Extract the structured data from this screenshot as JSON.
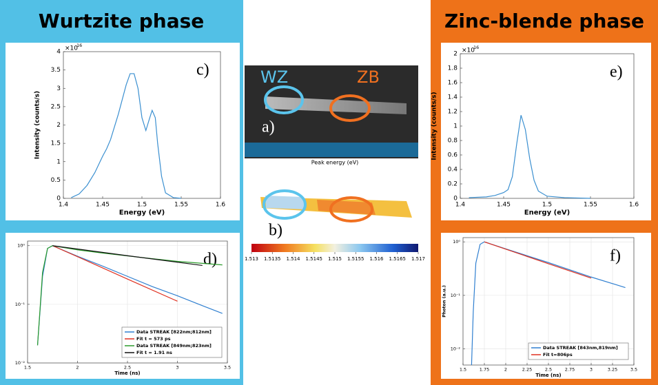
{
  "wurtzite_title": "Wurtzite phase",
  "zincblende_title": "Zinc-blende phase",
  "sem": {
    "label": "a)",
    "wz": "WZ",
    "zb": "ZB"
  },
  "map": {
    "label": "b)",
    "title": "Peak energy (eV)",
    "clim": [
      1.513,
      1.517
    ],
    "ticks": [
      1.513,
      1.5135,
      1.514,
      1.5145,
      1.515,
      1.5155,
      1.516,
      1.5165,
      1.517
    ]
  },
  "chart_data": [
    {
      "type": "line",
      "panel_label": "c)",
      "xlabel": "Energy (eV)",
      "ylabel": "Intensity (counts/s)",
      "y_multiplier": "×10",
      "y_exponent": "16",
      "color": "#3a8fd0",
      "x": [
        1.41,
        1.42,
        1.43,
        1.44,
        1.45,
        1.455,
        1.46,
        1.47,
        1.48,
        1.485,
        1.49,
        1.495,
        1.5,
        1.505,
        1.51,
        1.513,
        1.517,
        1.52,
        1.525,
        1.53,
        1.54,
        1.55
      ],
      "values": [
        0.02,
        0.12,
        0.35,
        0.7,
        1.15,
        1.35,
        1.6,
        2.3,
        3.1,
        3.4,
        3.4,
        3.0,
        2.2,
        1.85,
        2.2,
        2.4,
        2.2,
        1.5,
        0.6,
        0.15,
        0.02,
        0
      ],
      "xlim": [
        1.4,
        1.6
      ],
      "xticks": [
        1.4,
        1.45,
        1.5,
        1.55,
        1.6
      ],
      "ylim": [
        0,
        4
      ],
      "yticks": [
        0,
        0.5,
        1,
        1.5,
        2,
        2.5,
        3,
        3.5,
        4
      ],
      "grid": false,
      "log_y": false
    },
    {
      "type": "line",
      "panel_label": "d)",
      "xlabel": "Time (ns)",
      "series": [
        {
          "name": "Data STREAK [822nm;812nm]",
          "color": "#2f7fd0",
          "x": [
            1.6,
            1.65,
            1.7,
            1.75,
            2,
            2.25,
            2.5,
            2.75,
            3,
            3.25,
            3.45
          ],
          "values": [
            0.02,
            0.3,
            0.9,
            1,
            0.66,
            0.45,
            0.3,
            0.2,
            0.14,
            0.095,
            0.07
          ]
        },
        {
          "name": "Fit t = 573 ps",
          "color": "#e03020",
          "x": [
            1.75,
            2,
            2.5,
            3
          ],
          "values": [
            1,
            0.65,
            0.27,
            0.113
          ]
        },
        {
          "name": "Data STREAK [849nm;823nm]",
          "color": "#2a9a2a",
          "x": [
            1.6,
            1.65,
            1.7,
            1.75,
            2,
            2.25,
            2.5,
            2.75,
            3,
            3.25,
            3.45
          ],
          "values": [
            0.02,
            0.35,
            0.9,
            1,
            0.85,
            0.75,
            0.67,
            0.6,
            0.54,
            0.5,
            0.47
          ]
        },
        {
          "name": "Fit t = 1.91 ns",
          "color": "#111111",
          "x": [
            1.75,
            2.5,
            3.25
          ],
          "values": [
            1,
            0.675,
            0.46
          ]
        }
      ],
      "xlim": [
        1.5,
        3.5
      ],
      "xticks": [
        1.5,
        2,
        2.5,
        3,
        3.5
      ],
      "ylim": [
        0.01,
        1.2
      ],
      "yticks": [
        {
          "value": 0.01,
          "label": "10⁻²"
        },
        {
          "value": 0.1,
          "label": "10⁻¹"
        },
        {
          "value": 1,
          "label": "10⁰"
        }
      ],
      "grid": true,
      "log_y": true
    },
    {
      "type": "line",
      "panel_label": "e)",
      "xlabel": "Energy (eV)",
      "ylabel": "Intensity (counts/s)",
      "y_multiplier": "×10",
      "y_exponent": "16",
      "color": "#3a8fd0",
      "x": [
        1.41,
        1.43,
        1.44,
        1.45,
        1.455,
        1.46,
        1.465,
        1.47,
        1.475,
        1.48,
        1.485,
        1.49,
        1.5,
        1.52,
        1.55
      ],
      "values": [
        0.01,
        0.02,
        0.04,
        0.08,
        0.12,
        0.3,
        0.75,
        1.15,
        0.95,
        0.55,
        0.25,
        0.1,
        0.03,
        0.01,
        0
      ],
      "xlim": [
        1.4,
        1.6
      ],
      "xticks": [
        1.4,
        1.45,
        1.5,
        1.55,
        1.6
      ],
      "ylim": [
        0,
        2
      ],
      "yticks": [
        0,
        0.2,
        0.4,
        0.6,
        0.8,
        1,
        1.2,
        1.4,
        1.6,
        1.8,
        2
      ],
      "grid": false,
      "log_y": false
    },
    {
      "type": "line",
      "panel_label": "f)",
      "xlabel": "Time (ns)",
      "ylabel": "Photon (a.u.)",
      "series": [
        {
          "name": "Data STREAK [843nm,819nm]",
          "color": "#2f7fd0",
          "x": [
            1.6,
            1.62,
            1.65,
            1.7,
            1.75,
            2,
            2.5,
            3,
            3.4
          ],
          "values": [
            0.005,
            0.05,
            0.4,
            0.9,
            1,
            0.74,
            0.41,
            0.22,
            0.14
          ]
        },
        {
          "name": "Fit t=806ps",
          "color": "#e03020",
          "x": [
            1.75,
            2.5,
            3
          ],
          "values": [
            1,
            0.39,
            0.21
          ]
        }
      ],
      "xlim": [
        1.5,
        3.5
      ],
      "xticks": [
        1.5,
        1.75,
        2,
        2.25,
        2.5,
        2.75,
        3,
        3.25,
        3.5
      ],
      "ylim": [
        0.005,
        1.2
      ],
      "yticks": [
        {
          "value": 0.01,
          "label": "10⁻²"
        },
        {
          "value": 0.1,
          "label": "10⁻¹"
        },
        {
          "value": 1,
          "label": "10⁰"
        }
      ],
      "grid": true,
      "log_y": true
    }
  ]
}
